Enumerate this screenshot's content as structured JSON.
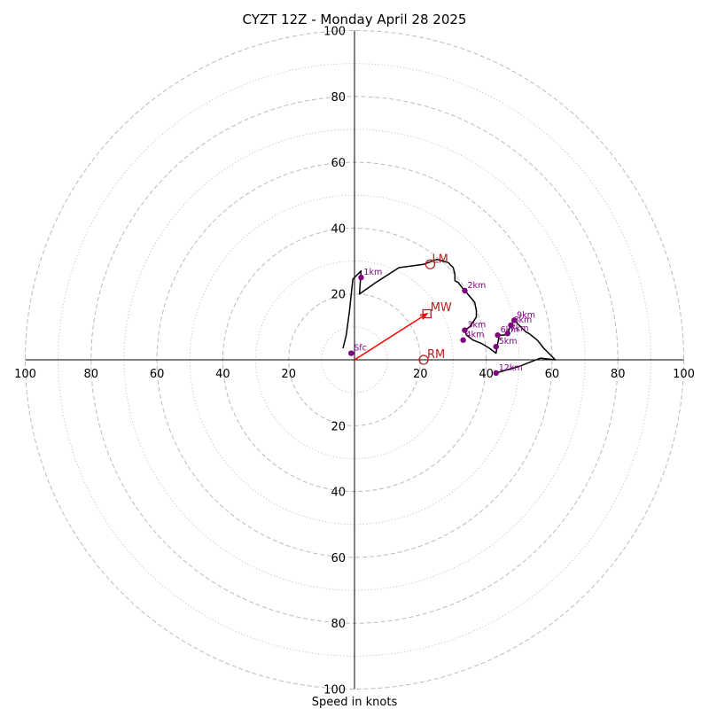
{
  "chart_data": {
    "type": "hodograph",
    "title": "CYZT 12Z - Monday April 28 2025",
    "xlabel": "Speed in knots",
    "axis_range": [
      -100,
      100
    ],
    "ring_dashed": [
      20,
      40,
      60,
      80,
      100
    ],
    "ring_dotted": [
      10,
      30,
      50,
      70,
      90
    ],
    "tick_labels": {
      "x_left": [
        "100",
        "80",
        "60",
        "40",
        "20"
      ],
      "x_right": [
        "20",
        "40",
        "60",
        "80",
        "100"
      ],
      "y_top": [
        "20",
        "40",
        "60",
        "80",
        "100"
      ],
      "y_bottom": [
        "20",
        "40",
        "60",
        "80",
        "100"
      ]
    },
    "x_left_values": [
      -100,
      -80,
      -60,
      -40,
      -20
    ],
    "x_right_values": [
      20,
      40,
      60,
      80,
      100
    ],
    "y_top_values": [
      20,
      40,
      60,
      80,
      100
    ],
    "y_bottom_values": [
      -20,
      -40,
      -60,
      -80,
      -100
    ],
    "trace": {
      "color": "#000000",
      "points": [
        [
          -3.5,
          3.5
        ],
        [
          -2.5,
          7.5
        ],
        [
          -1.5,
          15
        ],
        [
          -0.5,
          24.5
        ],
        [
          2,
          27
        ],
        [
          1.5,
          20
        ],
        [
          6.5,
          23.5
        ],
        [
          13.5,
          28
        ],
        [
          21,
          29
        ],
        [
          25,
          30.5
        ],
        [
          28.5,
          29.5
        ],
        [
          30,
          28
        ],
        [
          30.5,
          26
        ],
        [
          30.5,
          24
        ],
        [
          31.5,
          23.5
        ],
        [
          33,
          21.5
        ],
        [
          33.5,
          21
        ],
        [
          36.5,
          17.5
        ],
        [
          37,
          15
        ],
        [
          37,
          13
        ],
        [
          35,
          10
        ],
        [
          33.5,
          9
        ],
        [
          34,
          7.5
        ],
        [
          36,
          6
        ],
        [
          38.5,
          5
        ],
        [
          41,
          3.5
        ],
        [
          43,
          2
        ],
        [
          43.5,
          5
        ],
        [
          44,
          7.5
        ],
        [
          45.5,
          7.5
        ],
        [
          46.5,
          8
        ],
        [
          47.5,
          10.5
        ],
        [
          48.5,
          12
        ],
        [
          49.5,
          11
        ],
        [
          52,
          8.5
        ],
        [
          53,
          8
        ],
        [
          55.5,
          6
        ],
        [
          57.5,
          3.5
        ],
        [
          59.5,
          1.5
        ],
        [
          61,
          0
        ],
        [
          56.5,
          0.5
        ],
        [
          50,
          -2
        ],
        [
          43,
          -4
        ]
      ]
    },
    "height_markers": {
      "color": "#800080",
      "points": [
        {
          "label": "Sfc",
          "x": -1,
          "y": 2
        },
        {
          "label": "1km",
          "x": 2,
          "y": 25
        },
        {
          "label": "2km",
          "x": 33.5,
          "y": 21
        },
        {
          "label": "3km",
          "x": 33.5,
          "y": 9
        },
        {
          "label": "4km",
          "x": 33,
          "y": 6
        },
        {
          "label": "5km",
          "x": 43,
          "y": 4
        },
        {
          "label": "6km",
          "x": 43.5,
          "y": 7.5
        },
        {
          "label": "7km",
          "x": 46.5,
          "y": 8
        },
        {
          "label": "8km",
          "x": 47.5,
          "y": 10.5
        },
        {
          "label": "9km",
          "x": 48.5,
          "y": 12
        },
        {
          "label": "12km",
          "x": 43,
          "y": -4
        }
      ]
    },
    "storm_motion": {
      "color": "#b22222",
      "lm": {
        "label": "LM",
        "x": 23,
        "y": 29
      },
      "mw": {
        "label": "MW",
        "x": 22,
        "y": 14
      },
      "rm": {
        "label": "RM",
        "x": 21,
        "y": 0
      },
      "arrow": {
        "from": [
          0,
          0
        ],
        "to": [
          22,
          14
        ],
        "color": "#ff0000"
      }
    },
    "ring_color": "#bbbbbb"
  }
}
